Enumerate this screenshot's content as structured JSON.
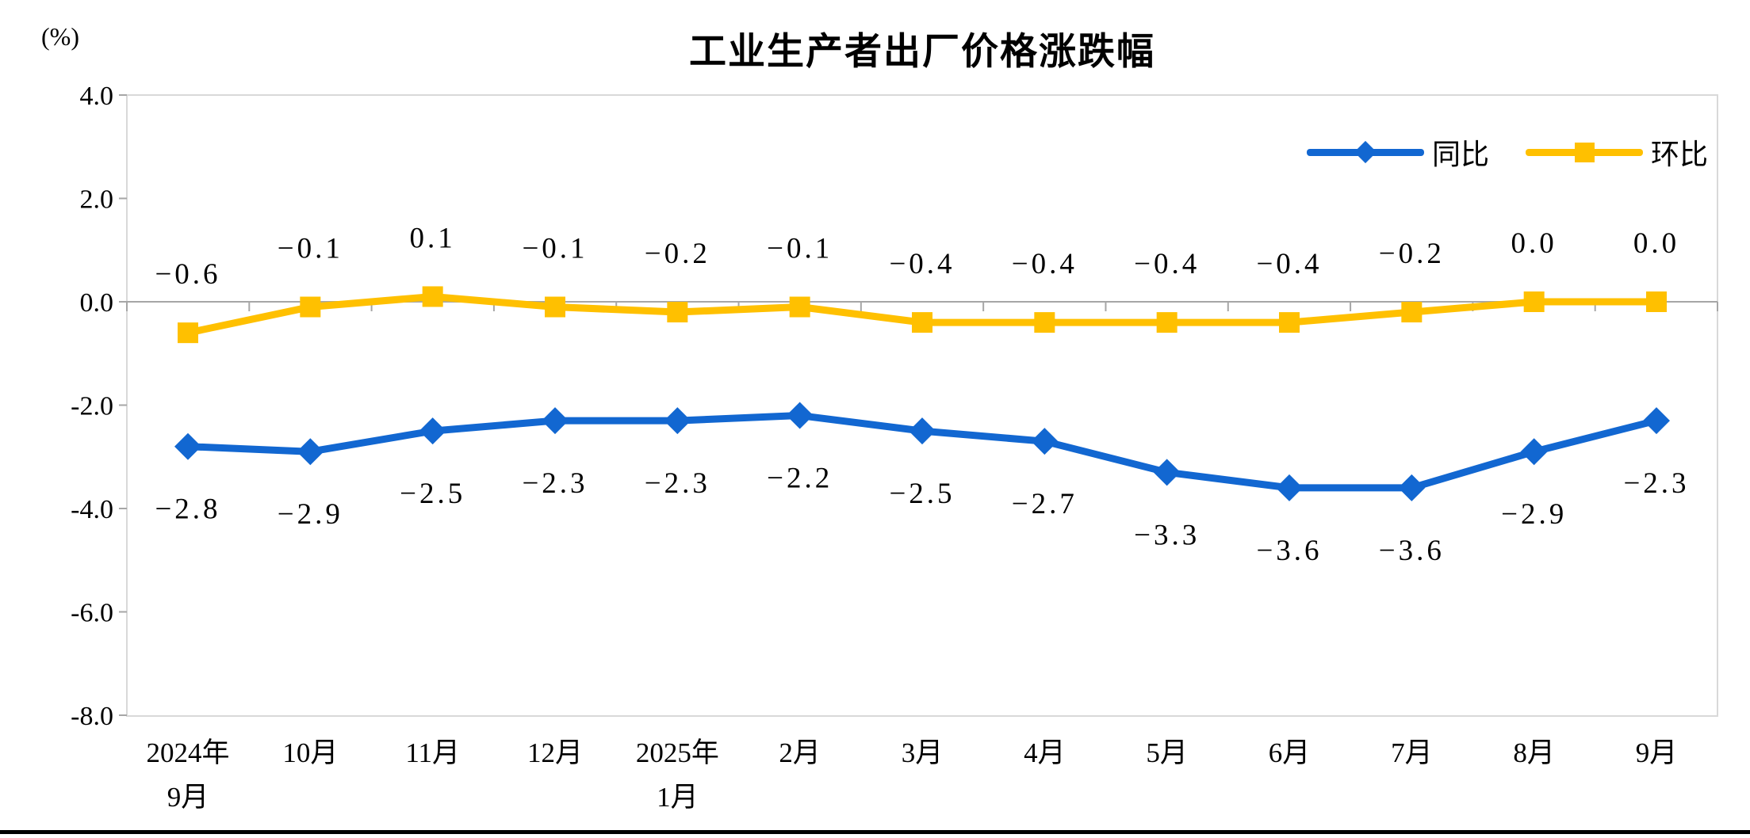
{
  "title": "工业生产者出厂价格涨跌幅",
  "y_axis_unit": "(%)",
  "colors": {
    "tongbi_blue": "#1267D1",
    "huanbi_yellow": "#FFC000",
    "zero_axis_gray": "#A6A6A6",
    "plot_border_gray": "#D9D9D9",
    "label_black": "#000000"
  },
  "legend": {
    "items": [
      {
        "label": "同比",
        "color": "#1267D1",
        "marker": "diamond"
      },
      {
        "label": "环比",
        "color": "#FFC000",
        "marker": "square"
      }
    ]
  },
  "chart_data": {
    "type": "line",
    "title": "工业生产者出厂价格涨跌幅",
    "ylabel": "(%)",
    "ylim": [
      -8.0,
      4.0
    ],
    "y_ticks": [
      "4.0",
      "2.0",
      "0.0",
      "-2.0",
      "-4.0",
      "-6.0",
      "-8.0"
    ],
    "y_tick_values": [
      4.0,
      2.0,
      0.0,
      -2.0,
      -4.0,
      -6.0,
      -8.0
    ],
    "grid": "zero-line-only",
    "legend_position": "top-right",
    "categories": [
      "2024年9月",
      "10月",
      "11月",
      "12月",
      "2025年1月",
      "2月",
      "3月",
      "4月",
      "5月",
      "6月",
      "7月",
      "8月",
      "9月"
    ],
    "categories_display": [
      [
        "2024年",
        "9月"
      ],
      [
        "10月"
      ],
      [
        "11月"
      ],
      [
        "12月"
      ],
      [
        "2025年",
        "1月"
      ],
      [
        "2月"
      ],
      [
        "3月"
      ],
      [
        "4月"
      ],
      [
        "5月"
      ],
      [
        "6月"
      ],
      [
        "7月"
      ],
      [
        "8月"
      ],
      [
        "9月"
      ]
    ],
    "series": [
      {
        "name": "同比",
        "color": "#1267D1",
        "marker": "diamond",
        "label_position": "below",
        "values": [
          -2.8,
          -2.9,
          -2.5,
          -2.3,
          -2.3,
          -2.2,
          -2.5,
          -2.7,
          -3.3,
          -3.6,
          -3.6,
          -2.9,
          -2.3
        ],
        "labels": [
          "-2.8",
          "-2.9",
          "-2.5",
          "-2.3",
          "-2.3",
          "-2.2",
          "-2.5",
          "-2.7",
          "-3.3",
          "-3.6",
          "-3.6",
          "-2.9",
          "-2.3"
        ]
      },
      {
        "name": "环比",
        "color": "#FFC000",
        "marker": "square",
        "label_position": "above",
        "values": [
          -0.6,
          -0.1,
          0.1,
          -0.1,
          -0.2,
          -0.1,
          -0.4,
          -0.4,
          -0.4,
          -0.4,
          -0.2,
          0.0,
          0.0
        ],
        "labels": [
          "-0.6",
          "-0.1",
          "0.1",
          "-0.1",
          "-0.2",
          "-0.1",
          "-0.4",
          "-0.4",
          "-0.4",
          "-0.4",
          "-0.2",
          "0.0",
          "0.0"
        ]
      }
    ]
  }
}
